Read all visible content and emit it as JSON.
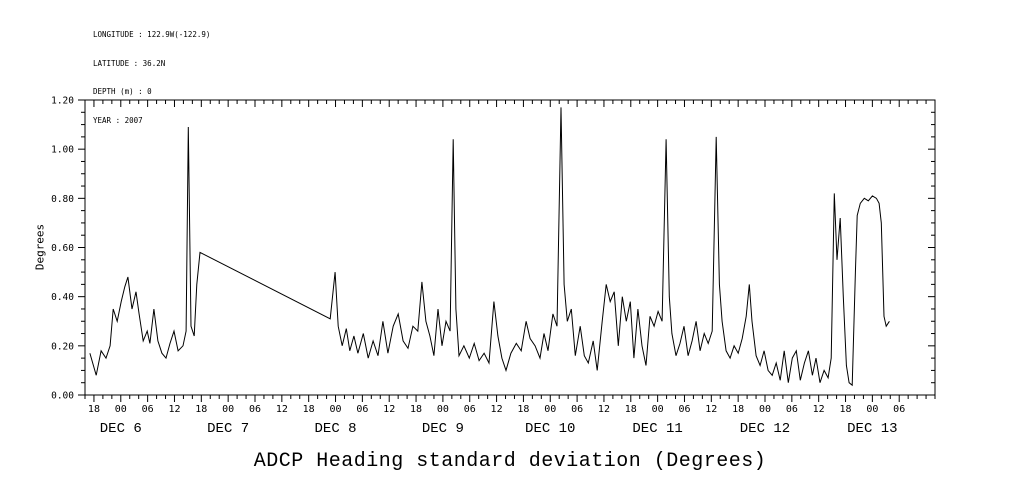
{
  "meta": {
    "longitude": "LONGITUDE : 122.9W(-122.9)",
    "latitude": "LATITUDE : 36.2N",
    "depth": "DEPTH (m) : 0",
    "year": "YEAR : 2007"
  },
  "chart_data": {
    "type": "line",
    "title": "ADCP Heading standard deviation (Degrees)",
    "ylabel": "Degrees",
    "ylim": [
      0,
      1.2
    ],
    "y_major_step": 0.2,
    "y_minor_step": 0.05,
    "y_tick_labels": [
      "0.00",
      "0.20",
      "0.40",
      "0.60",
      "0.80",
      "1.00",
      "1.20"
    ],
    "grid": false,
    "line_color": "#000000",
    "x_axis": {
      "description": "time axis, hours after 2007 DEC 5 18:00; major ticks every 6 h",
      "hours_domain": [
        -2,
        188
      ],
      "major_step_hours": 6,
      "minor_step_hours": 2,
      "tick_labels": [
        "18",
        "00",
        "06",
        "12",
        "18",
        "00",
        "06",
        "12",
        "18",
        "00",
        "06",
        "12",
        "18",
        "00",
        "06",
        "12",
        "18",
        "00",
        "06",
        "12",
        "18",
        "00",
        "06",
        "12",
        "18",
        "00",
        "06",
        "12",
        "18",
        "00",
        "06"
      ],
      "date_labels": [
        {
          "label": "DEC 6",
          "t": 6
        },
        {
          "label": "DEC 7",
          "t": 30
        },
        {
          "label": "DEC 8",
          "t": 54
        },
        {
          "label": "DEC 9",
          "t": 78
        },
        {
          "label": "DEC 10",
          "t": 102
        },
        {
          "label": "DEC 11",
          "t": 126
        },
        {
          "label": "DEC 12",
          "t": 150
        },
        {
          "label": "DEC 13",
          "t": 174
        }
      ]
    },
    "series": [
      {
        "name": "ADCP heading standard deviation",
        "points": [
          [
            -0.9,
            0.17
          ],
          [
            0.5,
            0.08
          ],
          [
            1.6,
            0.18
          ],
          [
            2.7,
            0.15
          ],
          [
            3.6,
            0.2
          ],
          [
            4.3,
            0.35
          ],
          [
            5.2,
            0.3
          ],
          [
            6.1,
            0.38
          ],
          [
            6.9,
            0.44
          ],
          [
            7.6,
            0.48
          ],
          [
            8.5,
            0.35
          ],
          [
            9.4,
            0.42
          ],
          [
            10.1,
            0.33
          ],
          [
            11,
            0.22
          ],
          [
            11.9,
            0.26
          ],
          [
            12.5,
            0.21
          ],
          [
            13.4,
            0.35
          ],
          [
            14.3,
            0.22
          ],
          [
            15.2,
            0.17
          ],
          [
            16.1,
            0.15
          ],
          [
            17,
            0.21
          ],
          [
            17.9,
            0.26
          ],
          [
            18.8,
            0.18
          ],
          [
            19.9,
            0.2
          ],
          [
            20.6,
            0.26
          ],
          [
            21.1,
            1.09
          ],
          [
            21.7,
            0.28
          ],
          [
            22.4,
            0.24
          ],
          [
            23,
            0.45
          ],
          [
            23.7,
            0.58
          ],
          [
            52.8,
            0.31
          ],
          [
            53.9,
            0.5
          ],
          [
            54.6,
            0.28
          ],
          [
            55.5,
            0.2
          ],
          [
            56.4,
            0.27
          ],
          [
            57.2,
            0.18
          ],
          [
            58.1,
            0.24
          ],
          [
            59,
            0.17
          ],
          [
            60.2,
            0.25
          ],
          [
            61.3,
            0.15
          ],
          [
            62.4,
            0.22
          ],
          [
            63.5,
            0.16
          ],
          [
            64.6,
            0.3
          ],
          [
            65.7,
            0.17
          ],
          [
            66.9,
            0.28
          ],
          [
            68,
            0.33
          ],
          [
            69.1,
            0.22
          ],
          [
            70.2,
            0.19
          ],
          [
            71.3,
            0.28
          ],
          [
            72.4,
            0.26
          ],
          [
            73.3,
            0.46
          ],
          [
            74.2,
            0.3
          ],
          [
            75.1,
            0.24
          ],
          [
            76,
            0.16
          ],
          [
            76.9,
            0.35
          ],
          [
            77.8,
            0.2
          ],
          [
            78.7,
            0.3
          ],
          [
            79.6,
            0.26
          ],
          [
            80.3,
            1.04
          ],
          [
            80.9,
            0.35
          ],
          [
            81.6,
            0.16
          ],
          [
            82.7,
            0.2
          ],
          [
            83.9,
            0.15
          ],
          [
            85,
            0.21
          ],
          [
            86.1,
            0.14
          ],
          [
            87.2,
            0.17
          ],
          [
            88.3,
            0.13
          ],
          [
            89.4,
            0.38
          ],
          [
            90.3,
            0.24
          ],
          [
            91.2,
            0.15
          ],
          [
            92.1,
            0.1
          ],
          [
            93.2,
            0.17
          ],
          [
            94.4,
            0.21
          ],
          [
            95.5,
            0.18
          ],
          [
            96.6,
            0.3
          ],
          [
            97.5,
            0.23
          ],
          [
            98.6,
            0.2
          ],
          [
            99.7,
            0.15
          ],
          [
            100.6,
            0.25
          ],
          [
            101.5,
            0.18
          ],
          [
            102.6,
            0.33
          ],
          [
            103.5,
            0.28
          ],
          [
            104.4,
            1.17
          ],
          [
            105.1,
            0.45
          ],
          [
            105.8,
            0.3
          ],
          [
            106.7,
            0.35
          ],
          [
            107.6,
            0.16
          ],
          [
            108.7,
            0.28
          ],
          [
            109.6,
            0.16
          ],
          [
            110.5,
            0.13
          ],
          [
            111.6,
            0.22
          ],
          [
            112.5,
            0.1
          ],
          [
            113.6,
            0.3
          ],
          [
            114.5,
            0.45
          ],
          [
            115.4,
            0.38
          ],
          [
            116.3,
            0.42
          ],
          [
            117.2,
            0.2
          ],
          [
            118.1,
            0.4
          ],
          [
            119,
            0.3
          ],
          [
            119.9,
            0.38
          ],
          [
            120.7,
            0.15
          ],
          [
            121.6,
            0.35
          ],
          [
            122.5,
            0.2
          ],
          [
            123.4,
            0.12
          ],
          [
            124.3,
            0.32
          ],
          [
            125.2,
            0.28
          ],
          [
            126.1,
            0.34
          ],
          [
            127,
            0.3
          ],
          [
            127.9,
            1.04
          ],
          [
            128.6,
            0.4
          ],
          [
            129.2,
            0.25
          ],
          [
            130.1,
            0.16
          ],
          [
            131,
            0.21
          ],
          [
            131.9,
            0.28
          ],
          [
            132.8,
            0.16
          ],
          [
            133.7,
            0.22
          ],
          [
            134.6,
            0.3
          ],
          [
            135.5,
            0.18
          ],
          [
            136.4,
            0.25
          ],
          [
            137.3,
            0.21
          ],
          [
            138.2,
            0.26
          ],
          [
            139.1,
            1.05
          ],
          [
            139.8,
            0.45
          ],
          [
            140.4,
            0.3
          ],
          [
            141.3,
            0.18
          ],
          [
            142.2,
            0.15
          ],
          [
            143.1,
            0.2
          ],
          [
            144,
            0.17
          ],
          [
            144.9,
            0.23
          ],
          [
            145.8,
            0.32
          ],
          [
            146.5,
            0.45
          ],
          [
            147.1,
            0.3
          ],
          [
            148,
            0.16
          ],
          [
            148.9,
            0.12
          ],
          [
            149.8,
            0.18
          ],
          [
            150.7,
            0.1
          ],
          [
            151.6,
            0.08
          ],
          [
            152.5,
            0.13
          ],
          [
            153.4,
            0.06
          ],
          [
            154.3,
            0.18
          ],
          [
            155.2,
            0.05
          ],
          [
            156.1,
            0.15
          ],
          [
            157,
            0.18
          ],
          [
            157.9,
            0.06
          ],
          [
            158.8,
            0.13
          ],
          [
            159.7,
            0.18
          ],
          [
            160.6,
            0.08
          ],
          [
            161.4,
            0.15
          ],
          [
            162.3,
            0.05
          ],
          [
            163.2,
            0.1
          ],
          [
            164.1,
            0.07
          ],
          [
            164.8,
            0.15
          ],
          [
            165.5,
            0.82
          ],
          [
            166.1,
            0.55
          ],
          [
            166.8,
            0.72
          ],
          [
            167.5,
            0.4
          ],
          [
            168.2,
            0.12
          ],
          [
            168.8,
            0.05
          ],
          [
            169.5,
            0.04
          ],
          [
            170.2,
            0.5
          ],
          [
            170.6,
            0.73
          ],
          [
            171.3,
            0.78
          ],
          [
            172.2,
            0.8
          ],
          [
            173.1,
            0.79
          ],
          [
            174,
            0.81
          ],
          [
            174.9,
            0.8
          ],
          [
            175.5,
            0.78
          ],
          [
            176,
            0.7
          ],
          [
            176.6,
            0.32
          ],
          [
            177.1,
            0.28
          ],
          [
            177.8,
            0.3
          ]
        ]
      }
    ]
  }
}
